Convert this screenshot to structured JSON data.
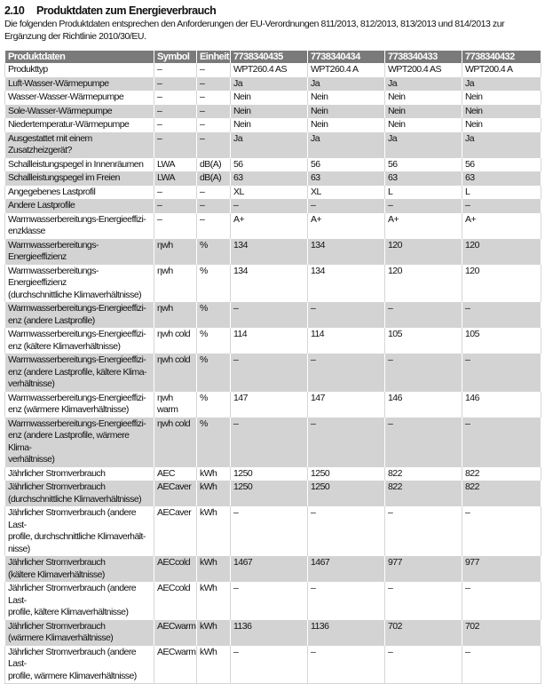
{
  "section": {
    "number": "2.10",
    "title": "Produktdaten zum Energieverbrauch"
  },
  "intro": "Die folgenden Produktdaten entsprechen den Anforderungen der EU-Verordnungen 811/2013, 812/2013, 813/2013 und 814/2013 zur Ergänzung der Richtlinie 2010/30/EU.",
  "table": {
    "headers": [
      "Produktdaten",
      "Symbol",
      "Einheit",
      "7738340435",
      "7738340434",
      "7738340433",
      "7738340432"
    ],
    "rows": [
      [
        "Produkttyp",
        "–",
        "–",
        "WPT260.4 AS",
        "WPT260.4 A",
        "WPT200.4 AS",
        "WPT200.4 A"
      ],
      [
        "Luft-Wasser-Wärmepumpe",
        "–",
        "–",
        "Ja",
        "Ja",
        "Ja",
        "Ja"
      ],
      [
        "Wasser-Wasser-Wärmepumpe",
        "–",
        "–",
        "Nein",
        "Nein",
        "Nein",
        "Nein"
      ],
      [
        "Sole-Wasser-Wärmepumpe",
        "–",
        "–",
        "Nein",
        "Nein",
        "Nein",
        "Nein"
      ],
      [
        "Niedertemperatur-Wärmepumpe",
        "–",
        "–",
        "Nein",
        "Nein",
        "Nein",
        "Nein"
      ],
      [
        "Ausgestattet mit einem Zusatzheizgerät?",
        "–",
        "–",
        "Ja",
        "Ja",
        "Ja",
        "Ja"
      ],
      [
        "Schallleistungspegel in Innenräumen",
        "LWA",
        "dB(A)",
        "56",
        "56",
        "56",
        "56"
      ],
      [
        "Schallleistungspegel im Freien",
        "LWA",
        "dB(A)",
        "63",
        "63",
        "63",
        "63"
      ],
      [
        "Angegebenes Lastprofil",
        "–",
        "–",
        "XL",
        "XL",
        "L",
        "L"
      ],
      [
        "Andere Lastprofile",
        "–",
        "–",
        "–",
        "–",
        "–",
        "–"
      ],
      [
        "Warmwasserbereitungs-Energieeffizi-\nenzklasse",
        "–",
        "–",
        "A+",
        "A+",
        "A+",
        "A+"
      ],
      [
        "Warmwasserbereitungs-Energieeffizienz",
        "ηwh",
        "%",
        "134",
        "134",
        "120",
        "120"
      ],
      [
        "Warmwasserbereitungs-Energieeffizienz\n(durchschnittliche Klimaverhältnisse)",
        "ηwh",
        "%",
        "134",
        "134",
        "120",
        "120"
      ],
      [
        "Warmwasserbereitungs-Energieeffizi-\nenz (andere Lastprofile)",
        "ηwh",
        "%",
        "–",
        "–",
        "–",
        "–"
      ],
      [
        "Warmwasserbereitungs-Energieeffizi-\nenz (kältere Klimaverhältnisse)",
        "ηwh cold",
        "%",
        "114",
        "114",
        "105",
        "105"
      ],
      [
        "Warmwasserbereitungs-Energieeffizi-\nenz (andere Lastprofile, kältere Klima-\nverhältnisse)",
        "ηwh cold",
        "%",
        "–",
        "–",
        "–",
        "–"
      ],
      [
        "Warmwasserbereitungs-Energieeffizi-\nenz (wärmere Klimaverhältnisse)",
        "ηwh warm",
        "%",
        "147",
        "147",
        "146",
        "146"
      ],
      [
        "Warmwasserbereitungs-Energieeffizi-\nenz (andere Lastprofile, wärmere Klima-\nverhältnisse)",
        "ηwh cold",
        "%",
        "–",
        "–",
        "–",
        "–"
      ],
      [
        "Jährlicher Stromverbrauch",
        "AEC",
        "kWh",
        "1250",
        "1250",
        "822",
        "822"
      ],
      [
        "Jährlicher Stromverbrauch\n(durchschnittliche Klimaverhältnisse)",
        "AECaver",
        "kWh",
        "1250",
        "1250",
        "822",
        "822"
      ],
      [
        "Jährlicher Stromverbrauch (andere Last-\nprofile, durchschnittliche Klimaverhält-\nnisse)",
        "AECaver",
        "kWh",
        "–",
        "–",
        "–",
        "–"
      ],
      [
        "Jährlicher Stromverbrauch\n(kältere Klimaverhältnisse)",
        "AECcold",
        "kWh",
        "1467",
        "1467",
        "977",
        "977"
      ],
      [
        "Jährlicher Stromverbrauch (andere Last-\nprofile, kältere Klimaverhältnisse)",
        "AECcold",
        "kWh",
        "–",
        "–",
        "–",
        "–"
      ],
      [
        "Jährlicher Stromverbrauch\n(wärmere Klimaverhältnisse)",
        "AECwarm",
        "kWh",
        "1136",
        "1136",
        "702",
        "702"
      ],
      [
        "Jährlicher Stromverbrauch (andere Last-\nprofile, wärmere Klimaverhältnisse)",
        "AECwarm",
        "kWh",
        "–",
        "–",
        "–",
        "–"
      ]
    ]
  }
}
